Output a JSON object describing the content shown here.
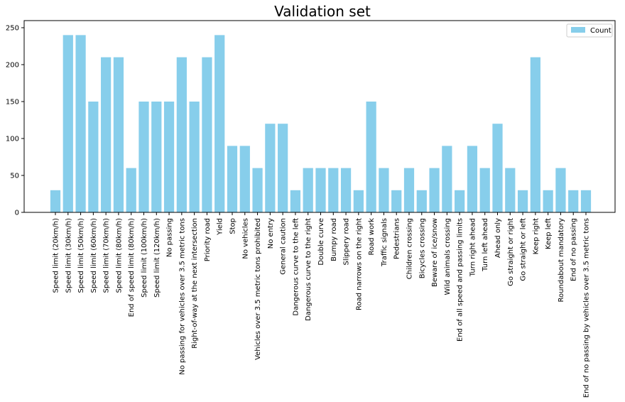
{
  "chart_data": {
    "type": "bar",
    "title": "Validation set",
    "xlabel": "",
    "ylabel": "",
    "ylim": [
      0,
      250
    ],
    "yticks": [
      0,
      50,
      100,
      150,
      200,
      250
    ],
    "grid": false,
    "legend": {
      "placement": "top-right",
      "entries": [
        "Count"
      ]
    },
    "colors": {
      "bar": "#87ceeb",
      "axis": "#000000"
    },
    "series": [
      {
        "name": "Count",
        "values": [
          30,
          240,
          240,
          150,
          210,
          210,
          60,
          150,
          150,
          150,
          210,
          150,
          210,
          240,
          90,
          90,
          60,
          120,
          120,
          30,
          60,
          60,
          60,
          60,
          30,
          150,
          60,
          30,
          60,
          30,
          60,
          90,
          30,
          90,
          60,
          120,
          60,
          30,
          210,
          30,
          60,
          30,
          30
        ]
      }
    ],
    "categories": [
      "Speed limit (20km/h)",
      "Speed limit (30km/h)",
      "Speed limit (50km/h)",
      "Speed limit (60km/h)",
      "Speed limit (70km/h)",
      "Speed limit (80km/h)",
      "End of speed limit (80km/h)",
      "Speed limit (100km/h)",
      "Speed limit (120km/h)",
      "No passing",
      "No passing for vehicles over 3.5 metric tons",
      "Right-of-way at the next intersection",
      "Priority road",
      "Yield",
      "Stop",
      "No vehicles",
      "Vehicles over 3.5 metric tons prohibited",
      "No entry",
      "General caution",
      "Dangerous curve to the left",
      "Dangerous curve to the right",
      "Double curve",
      "Bumpy road",
      "Slippery road",
      "Road narrows on the right",
      "Road work",
      "Traffic signals",
      "Pedestrians",
      "Children crossing",
      "Bicycles crossing",
      "Beware of ice/snow",
      "Wild animals crossing",
      "End of all speed and passing limits",
      "Turn right ahead",
      "Turn left ahead",
      "Ahead only",
      "Go straight or right",
      "Go straight or left",
      "Keep right",
      "Keep left",
      "Roundabout mandatory",
      "End of no passing",
      "End of no passing by vehicles over 3.5 metric tons"
    ]
  }
}
